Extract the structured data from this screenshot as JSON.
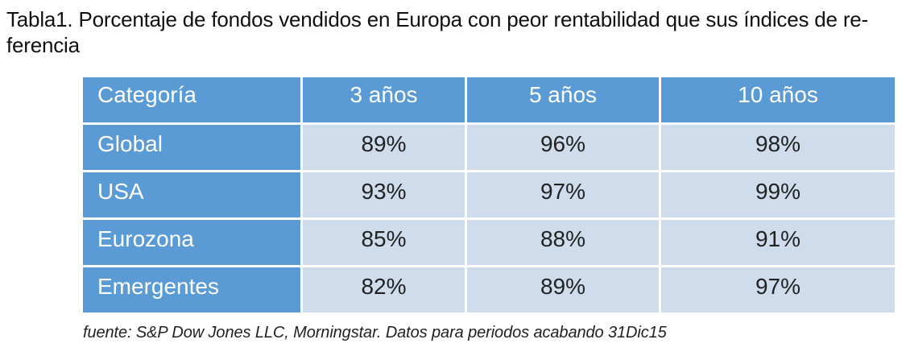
{
  "caption": "Tabla1. Porcentaje de fondos vendidos en Europa con peor rentabilidad que sus índices de re-ferencia",
  "table": {
    "headers": [
      "Categoría",
      "3 años",
      "5 años",
      "10 años"
    ],
    "rows": [
      {
        "category": "Global",
        "y3": "89%",
        "y5": "96%",
        "y10": "98%"
      },
      {
        "category": "USA",
        "y3": "93%",
        "y5": "97%",
        "y10": "99%"
      },
      {
        "category": "Eurozona",
        "y3": "85%",
        "y5": "88%",
        "y10": "91%"
      },
      {
        "category": "Emergentes",
        "y3": "82%",
        "y5": "89%",
        "y10": "97%"
      }
    ]
  },
  "source": "fuente: S&P Dow Jones LLC, Morningstar. Datos para periodos acabando 31Dic15",
  "colors": {
    "header_bg": "#5a9bd5",
    "cell_bg": "#cfdcec"
  }
}
